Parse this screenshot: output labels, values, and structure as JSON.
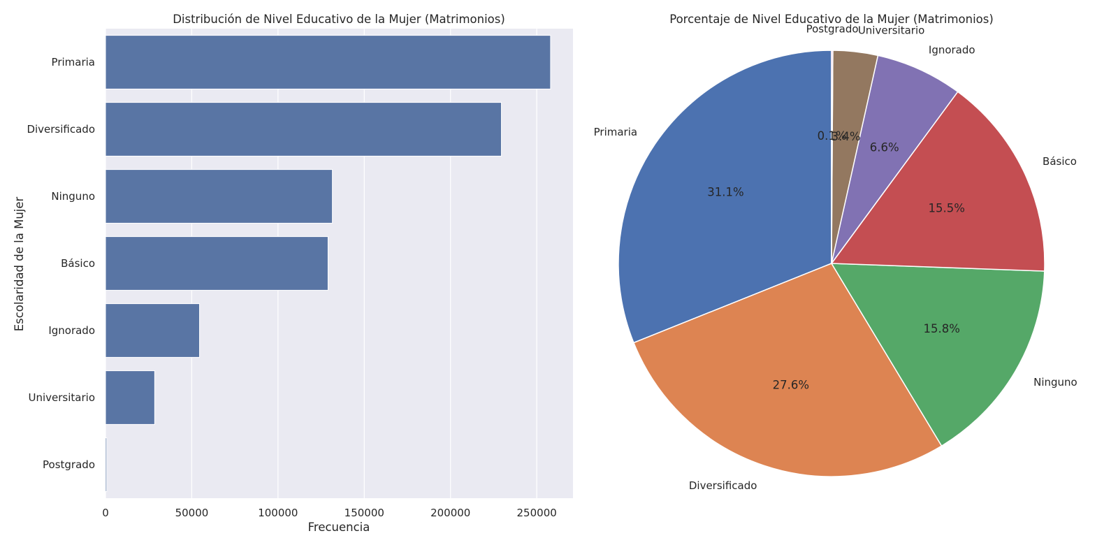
{
  "chart_data": [
    {
      "type": "bar",
      "orientation": "horizontal",
      "title": "Distribución de Nivel Educativo de la Mujer (Matrimonios)",
      "xlabel": "Frecuencia",
      "ylabel": "Escolaridad de la Mujer",
      "categories": [
        "Primaria",
        "Diversificado",
        "Ninguno",
        "Básico",
        "Ignorado",
        "Universitario",
        "Postgrado"
      ],
      "values": [
        258000,
        229500,
        131500,
        129000,
        54500,
        28500,
        700
      ],
      "xlim": [
        0,
        271000
      ],
      "xticks": [
        0,
        50000,
        100000,
        150000,
        200000,
        250000
      ],
      "xtick_labels": [
        "0",
        "50000",
        "100000",
        "150000",
        "200000",
        "250000"
      ],
      "grid": true,
      "background": "#eaeaf2",
      "bar_color": "#5975a4"
    },
    {
      "type": "pie",
      "title": "Porcentaje de Nivel Educativo de la Mujer (Matrimonios)",
      "start_angle_deg": 90,
      "direction": "counterclockwise",
      "slices": [
        {
          "label": "Primaria",
          "value": 31.1,
          "pct_label": "31.1%",
          "color": "#4c72b0"
        },
        {
          "label": "Diversificado",
          "value": 27.6,
          "pct_label": "27.6%",
          "color": "#dd8452"
        },
        {
          "label": "Ninguno",
          "value": 15.8,
          "pct_label": "15.8%",
          "color": "#55a868"
        },
        {
          "label": "Básico",
          "value": 15.5,
          "pct_label": "15.5%",
          "color": "#c44e52"
        },
        {
          "label": "Ignorado",
          "value": 6.6,
          "pct_label": "6.6%",
          "color": "#8172b3"
        },
        {
          "label": "Universitario",
          "value": 3.4,
          "pct_label": "3.4%",
          "color": "#937860"
        },
        {
          "label": "Postgrado",
          "value": 0.1,
          "pct_label": "0.1%",
          "color": "#da8bc3"
        }
      ]
    }
  ]
}
